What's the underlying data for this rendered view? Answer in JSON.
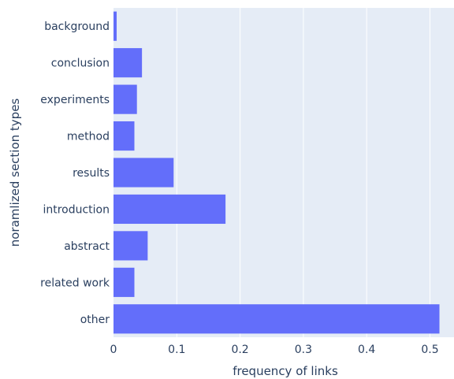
{
  "chart_data": {
    "type": "bar",
    "orientation": "horizontal",
    "categories": [
      "background",
      "conclusion",
      "experiments",
      "method",
      "results",
      "introduction",
      "abstract",
      "related work",
      "other"
    ],
    "values": [
      0.005,
      0.045,
      0.037,
      0.033,
      0.095,
      0.177,
      0.054,
      0.033,
      0.515
    ],
    "xlabel": "frequency of links",
    "ylabel": "noramlized section types",
    "xticks": [
      0,
      0.1,
      0.2,
      0.3,
      0.4,
      0.5
    ],
    "xtick_labels": [
      "0",
      "0.1",
      "0.2",
      "0.3",
      "0.4",
      "0.5"
    ],
    "xlim": [
      0,
      0.538
    ],
    "grid": "vertical",
    "colors": {
      "bar": "#636efa",
      "plot_bg": "#e5ecf6",
      "grid": "#ffffff",
      "text": "#2a3f5f"
    }
  }
}
